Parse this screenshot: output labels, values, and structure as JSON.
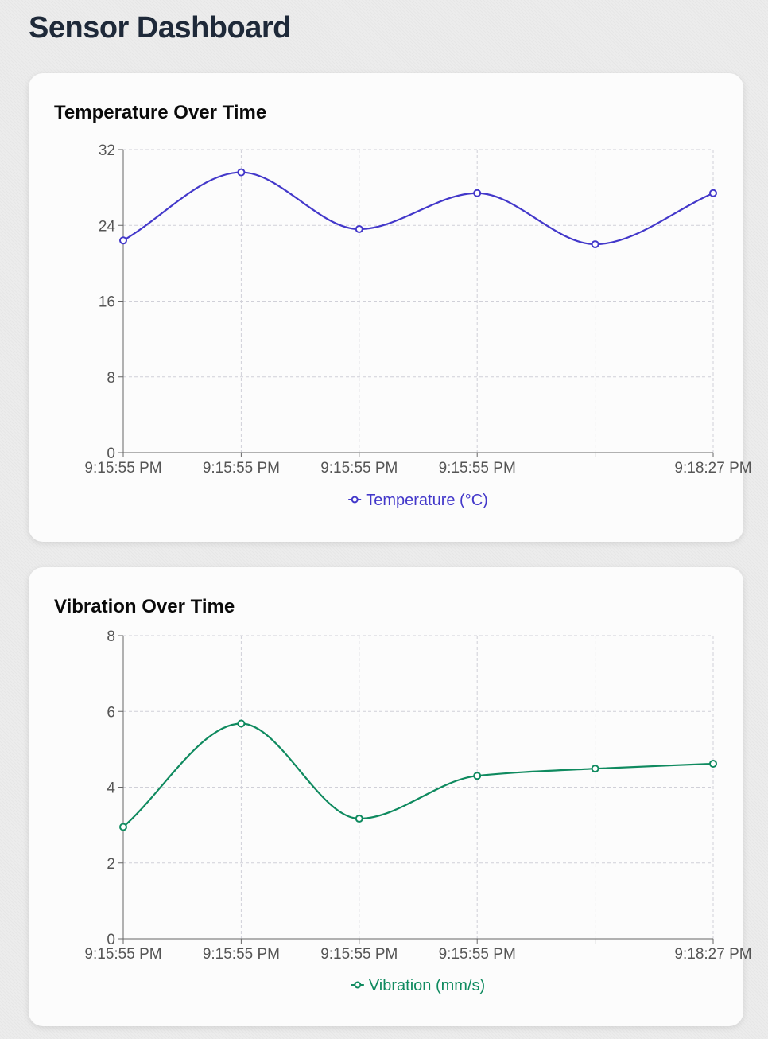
{
  "page": {
    "title": "Sensor Dashboard"
  },
  "cards": [
    {
      "title": "Temperature Over Time"
    },
    {
      "title": "Vibration Over Time"
    }
  ],
  "chart_data": [
    {
      "type": "line",
      "title": "Temperature Over Time",
      "x": [
        "9:15:55 PM",
        "9:15:55 PM",
        "9:15:55 PM",
        "9:15:55 PM",
        "",
        "9:18:27 PM"
      ],
      "x_tick_labels": [
        "9:15:55 PM",
        "9:15:55 PM",
        "9:15:55 PM",
        "9:15:55 PM",
        "",
        "9:18:27 PM"
      ],
      "y_ticks": [
        0,
        8,
        16,
        24,
        32
      ],
      "ylim": [
        0,
        32
      ],
      "grid": true,
      "legend_position": "bottom",
      "color": "#4338ca",
      "series": [
        {
          "name": "Temperature (°C)",
          "values": [
            22.4,
            29.6,
            23.6,
            27.4,
            22.0,
            27.4
          ]
        }
      ]
    },
    {
      "type": "line",
      "title": "Vibration Over Time",
      "x": [
        "9:15:55 PM",
        "9:15:55 PM",
        "9:15:55 PM",
        "9:15:55 PM",
        "",
        "9:18:27 PM"
      ],
      "x_tick_labels": [
        "9:15:55 PM",
        "9:15:55 PM",
        "9:15:55 PM",
        "9:15:55 PM",
        "",
        "9:18:27 PM"
      ],
      "y_ticks": [
        0,
        2,
        4,
        6,
        8
      ],
      "ylim": [
        0,
        8
      ],
      "grid": true,
      "legend_position": "bottom",
      "color": "#0f8a5f",
      "series": [
        {
          "name": "Vibration (mm/s)",
          "values": [
            2.95,
            5.68,
            3.17,
            4.3,
            4.49,
            4.62
          ]
        }
      ]
    }
  ]
}
